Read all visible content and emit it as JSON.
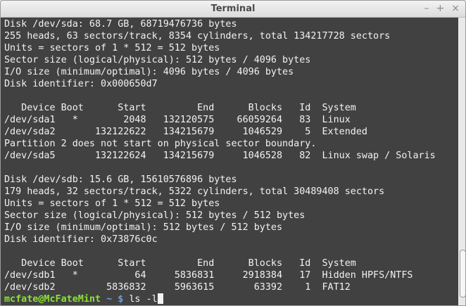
{
  "window": {
    "title": "Terminal",
    "minimize": "–",
    "maximize": "+",
    "close": "×"
  },
  "terminal": {
    "lines": [
      "Disk /dev/sda: 68.7 GB, 68719476736 bytes",
      "255 heads, 63 sectors/track, 8354 cylinders, total 134217728 sectors",
      "Units = sectors of 1 * 512 = 512 bytes",
      "Sector size (logical/physical): 512 bytes / 4096 bytes",
      "I/O size (minimum/optimal): 4096 bytes / 4096 bytes",
      "Disk identifier: 0x000650d7",
      "",
      "   Device Boot      Start         End      Blocks   Id  System",
      "/dev/sda1   *        2048   132120575    66059264   83  Linux",
      "/dev/sda2       132122622   134215679     1046529    5  Extended",
      "Partition 2 does not start on physical sector boundary.",
      "/dev/sda5       132122624   134215679     1046528   82  Linux swap / Solaris",
      "",
      "Disk /dev/sdb: 15.6 GB, 15610576896 bytes",
      "179 heads, 32 sectors/track, 5322 cylinders, total 30489408 sectors",
      "Units = sectors of 1 * 512 = 512 bytes",
      "Sector size (logical/physical): 512 bytes / 512 bytes",
      "I/O size (minimum/optimal): 512 bytes / 512 bytes",
      "Disk identifier: 0x73876c0c",
      "",
      "   Device Boot      Start         End      Blocks   Id  System",
      "/dev/sdb1   *          64     5836831     2918384   17  Hidden HPFS/NTFS",
      "/dev/sdb2         5836832     5963615       63392    1  FAT12"
    ],
    "prompt": {
      "user_host": "mcfate@McFateMint",
      "path": " ~ $",
      "command": " ls -l"
    },
    "colors": {
      "prompt_user": "#8ae234",
      "prompt_path": "#729fcf",
      "text": "#f2f2f2"
    }
  }
}
